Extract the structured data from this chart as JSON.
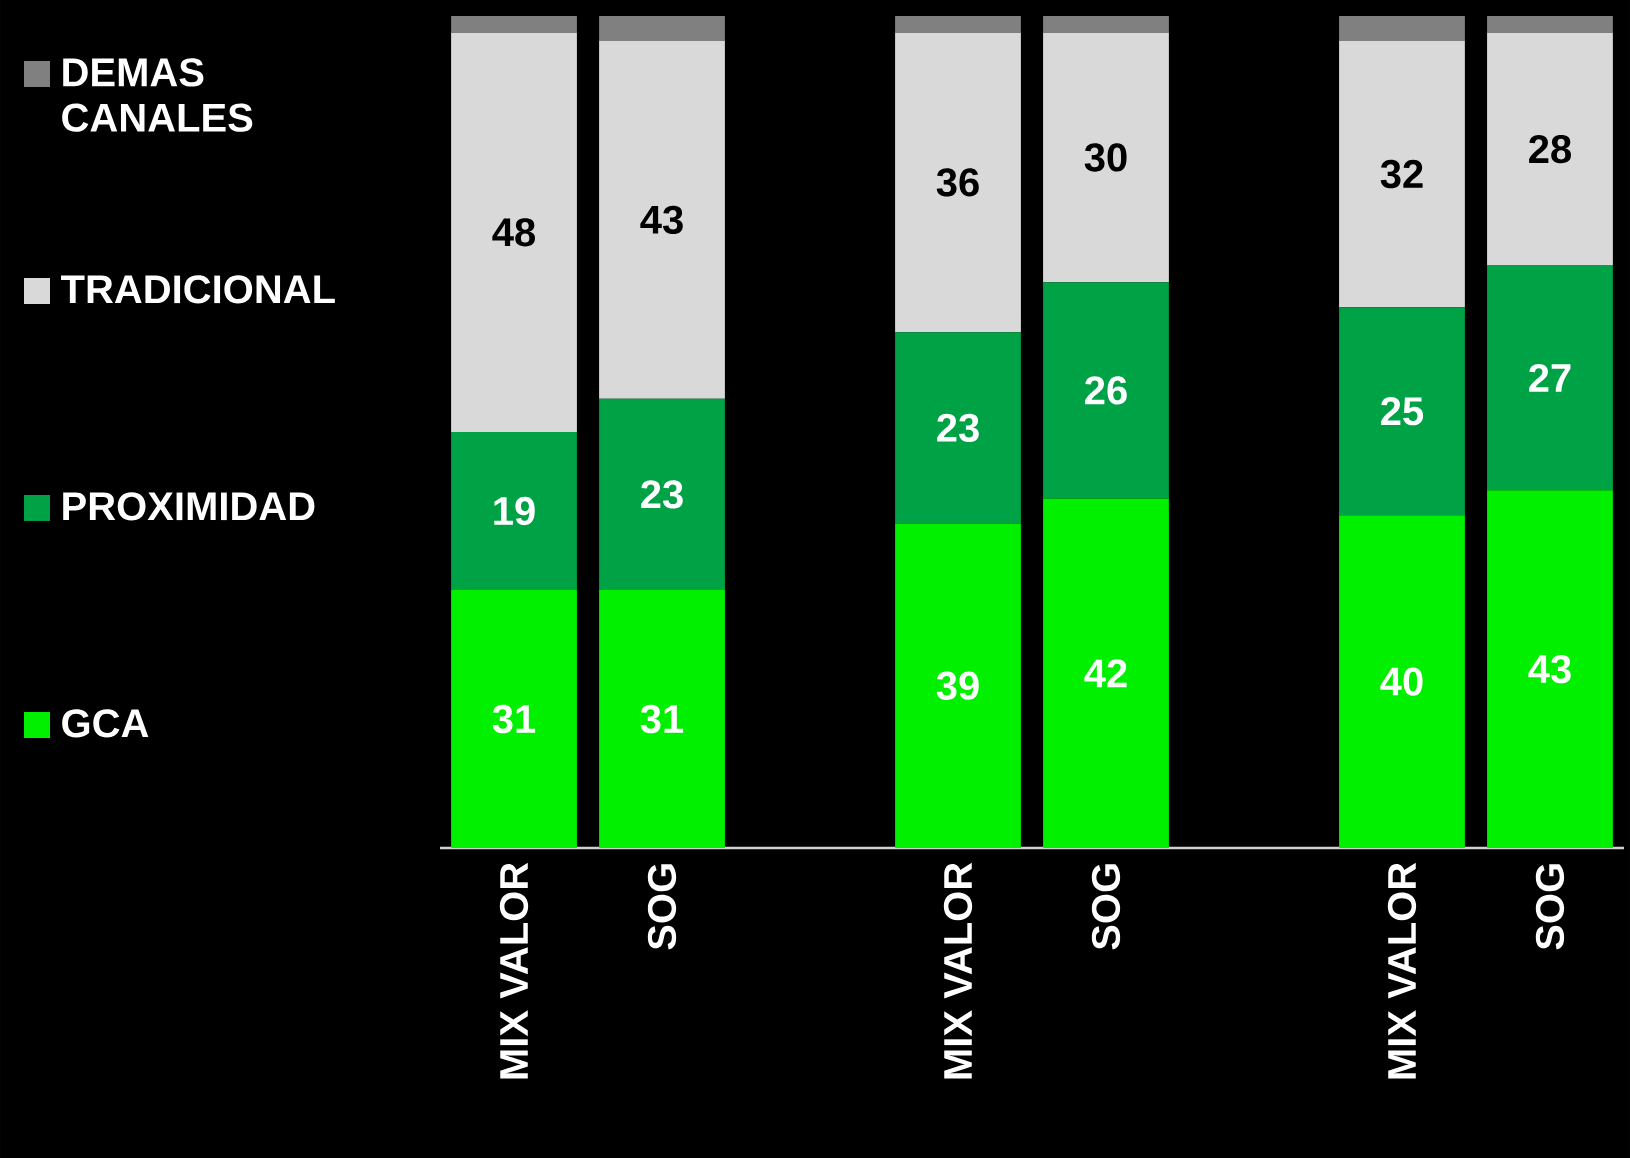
{
  "chart_data": {
    "type": "bar",
    "stacked": true,
    "legend": "left",
    "categories": [
      "MIX VALOR",
      "SOG",
      null,
      "MIX VALOR",
      "SOG",
      null,
      "MIX VALOR",
      "SOG"
    ],
    "series": [
      {
        "name": "GCA",
        "color": "#00f000",
        "values": [
          31,
          31,
          null,
          39,
          42,
          null,
          40,
          43
        ],
        "value_labels": [
          "31",
          "31",
          null,
          "39",
          "42",
          null,
          "40",
          "43"
        ]
      },
      {
        "name": "PROXIMIDAD",
        "color": "#00a246",
        "values": [
          19,
          23,
          null,
          23,
          26,
          null,
          25,
          27
        ],
        "value_labels": [
          "19",
          "23",
          null,
          "23",
          "26",
          null,
          "25",
          "27"
        ]
      },
      {
        "name": "TRADICIONAL",
        "color": "#d9d9d9",
        "values": [
          48,
          43,
          null,
          36,
          30,
          null,
          32,
          28
        ],
        "value_labels": [
          "48",
          "43",
          null,
          "36",
          "30",
          null,
          "32",
          "28"
        ]
      },
      {
        "name": "DEMAS CANALES",
        "color": "#808080",
        "values": [
          2,
          3,
          null,
          2,
          2,
          null,
          3,
          2
        ]
      }
    ]
  }
}
